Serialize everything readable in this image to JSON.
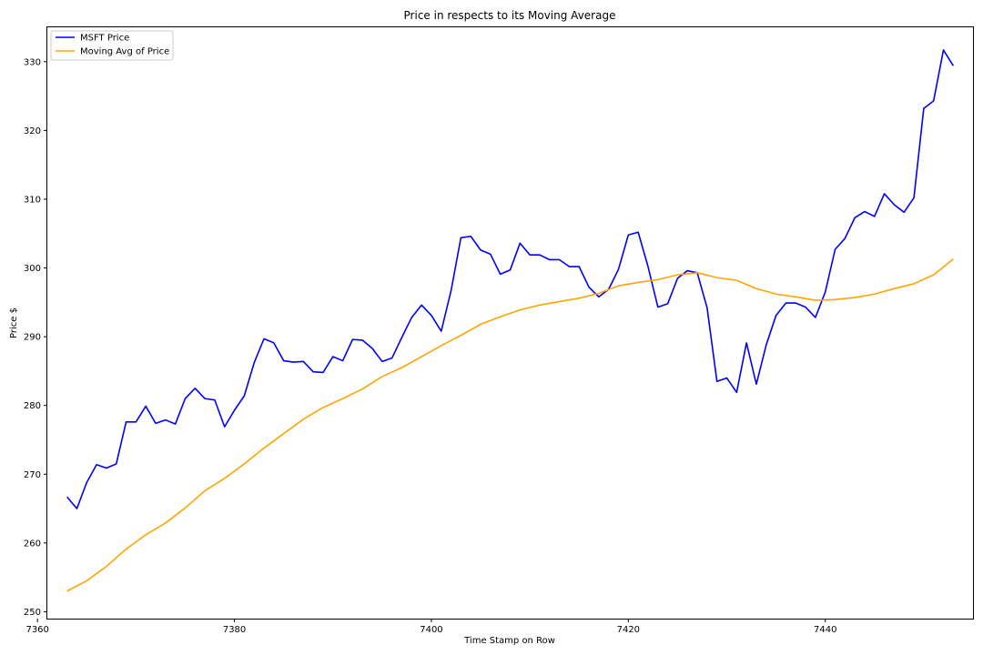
{
  "chart_data": {
    "type": "line",
    "title": "Price in respects to its Moving Average",
    "xlabel": "Time Stamp on Row",
    "ylabel": "Price $",
    "xlim": [
      7361,
      7455
    ],
    "ylim": [
      249,
      335
    ],
    "xticks": [
      7360,
      7380,
      7400,
      7420,
      7440
    ],
    "yticks": [
      250,
      260,
      270,
      280,
      290,
      300,
      310,
      320,
      330
    ],
    "grid": false,
    "legend_position": "upper-left",
    "series": [
      {
        "name": "MSFT Price",
        "color": "#0000ff",
        "x": [
          7363,
          7364,
          7365,
          7366,
          7367,
          7368,
          7369,
          7370,
          7371,
          7372,
          7373,
          7374,
          7375,
          7376,
          7377,
          7378,
          7379,
          7380,
          7381,
          7382,
          7383,
          7384,
          7385,
          7386,
          7387,
          7388,
          7389,
          7390,
          7391,
          7392,
          7393,
          7394,
          7395,
          7396,
          7397,
          7398,
          7399,
          7400,
          7401,
          7402,
          7403,
          7404,
          7405,
          7406,
          7407,
          7408,
          7409,
          7410,
          7411,
          7412,
          7413,
          7414,
          7415,
          7416,
          7417,
          7418,
          7419,
          7420,
          7421,
          7422,
          7423,
          7424,
          7425,
          7426,
          7427,
          7428,
          7429,
          7430,
          7431,
          7432,
          7433,
          7434,
          7435,
          7436,
          7437,
          7438,
          7439,
          7440,
          7441,
          7442,
          7443,
          7444,
          7445,
          7446,
          7447,
          7448,
          7449,
          7450,
          7451,
          7452,
          7453
        ],
        "y": [
          266.7,
          265.0,
          268.8,
          271.4,
          270.9,
          271.5,
          277.6,
          277.6,
          279.9,
          277.4,
          277.9,
          277.3,
          281.0,
          282.5,
          281.0,
          280.8,
          276.9,
          279.3,
          281.4,
          286.2,
          289.7,
          289.1,
          286.5,
          286.3,
          286.4,
          284.9,
          284.8,
          287.1,
          286.5,
          289.6,
          289.5,
          288.3,
          286.4,
          286.9,
          289.9,
          292.8,
          294.6,
          293.1,
          290.8,
          296.7,
          304.4,
          304.6,
          302.6,
          302.0,
          299.1,
          299.7,
          303.6,
          301.9,
          301.9,
          301.2,
          301.2,
          300.2,
          300.2,
          297.2,
          295.8,
          296.9,
          299.8,
          304.8,
          305.2,
          300.2,
          294.3,
          294.8,
          298.5,
          299.6,
          299.3,
          294.2,
          283.5,
          284.0,
          281.9,
          289.1,
          283.1,
          288.8,
          293.1,
          294.9,
          294.9,
          294.3,
          292.8,
          296.5,
          302.7,
          304.3,
          307.3,
          308.2,
          307.5,
          310.8,
          309.2,
          308.1,
          310.2,
          323.2,
          324.3,
          331.7,
          329.4
        ]
      },
      {
        "name": "Moving Avg of Price",
        "color": "#ffa500",
        "x": [
          7363,
          7365,
          7367,
          7369,
          7371,
          7373,
          7375,
          7377,
          7379,
          7381,
          7383,
          7385,
          7387,
          7389,
          7391,
          7393,
          7395,
          7397,
          7399,
          7401,
          7403,
          7405,
          7407,
          7409,
          7411,
          7413,
          7415,
          7417,
          7419,
          7421,
          7423,
          7425,
          7427,
          7429,
          7431,
          7433,
          7435,
          7437,
          7439,
          7441,
          7443,
          7445,
          7447,
          7449,
          7451,
          7453
        ],
        "y": [
          253.0,
          254.5,
          256.6,
          259.1,
          261.2,
          262.9,
          265.1,
          267.6,
          269.4,
          271.5,
          273.8,
          275.9,
          278.0,
          279.7,
          281.0,
          282.4,
          284.2,
          285.5,
          287.1,
          288.7,
          290.2,
          291.8,
          292.9,
          293.9,
          294.6,
          295.1,
          295.6,
          296.3,
          297.4,
          297.9,
          298.3,
          299.0,
          299.3,
          298.6,
          298.2,
          297.0,
          296.2,
          295.8,
          295.3,
          295.4,
          295.7,
          296.2,
          297.0,
          297.7,
          299.0,
          301.3
        ]
      }
    ]
  }
}
